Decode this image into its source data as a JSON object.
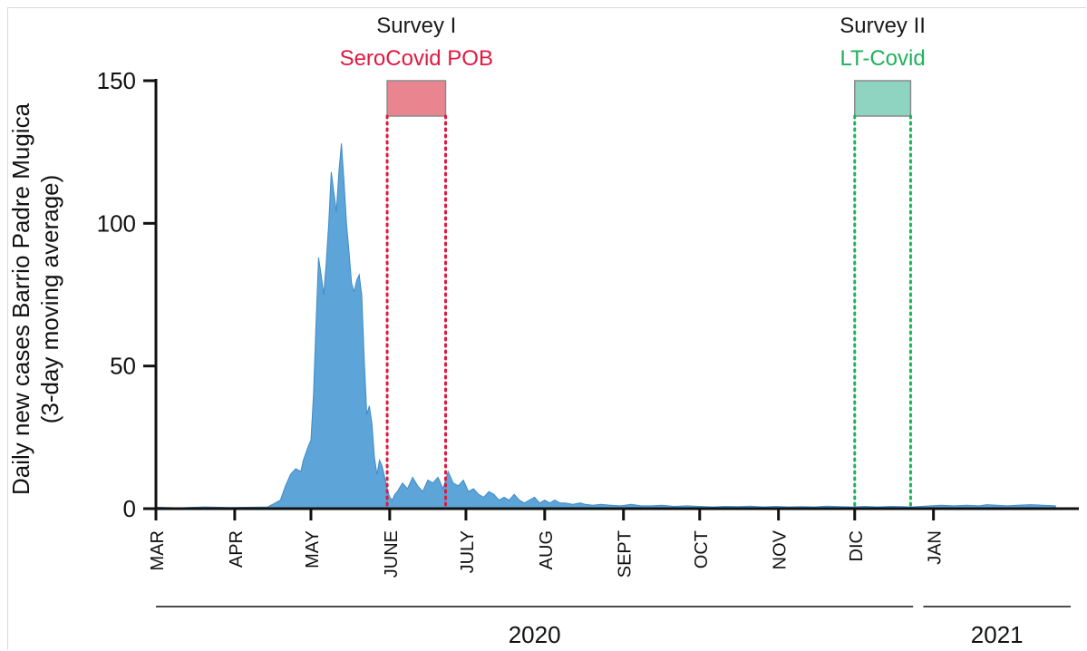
{
  "chart_data": {
    "type": "area",
    "ylabel_line1": "Daily new cases Barrio Padre Mugica",
    "ylabel_line2": "(3-day moving average)",
    "ylim": [
      0,
      150
    ],
    "yticks": [
      0,
      50,
      100,
      150
    ],
    "x_unit": "day of year 2020 (day 1 = Jan 1, 2020)",
    "xlim": [
      61,
      421
    ],
    "month_ticks": [
      {
        "label": "MAR",
        "day": 61
      },
      {
        "label": "APR",
        "day": 92
      },
      {
        "label": "MAY",
        "day": 122
      },
      {
        "label": "JUNE",
        "day": 153
      },
      {
        "label": "JULY",
        "day": 183
      },
      {
        "label": "AUG",
        "day": 214
      },
      {
        "label": "SEPT",
        "day": 245
      },
      {
        "label": "OCT",
        "day": 275
      },
      {
        "label": "NOV",
        "day": 306
      },
      {
        "label": "DIC",
        "day": 336
      },
      {
        "label": "JAN",
        "day": 367
      }
    ],
    "year_groups": [
      {
        "label": "2020",
        "from": 61,
        "to": 359
      },
      {
        "label": "2021",
        "from": 363,
        "to": 421
      }
    ],
    "surveys": [
      {
        "title": "Survey I",
        "name": "SeroCovid POB",
        "start": 152,
        "end": 175,
        "color": "#e0193f",
        "fill": "#e8858f"
      },
      {
        "title": "Survey II",
        "name": "LT-Covid",
        "start": 336,
        "end": 358,
        "color": "#1db15a",
        "fill": "#8fd3c1"
      }
    ],
    "series": [
      {
        "color": "#5da4d8",
        "x": [
          61,
          70,
          80,
          90,
          100,
          105,
          108,
          110,
          112,
          114,
          116,
          118,
          119,
          121,
          122,
          123,
          124,
          125,
          126,
          127,
          128,
          129,
          130,
          131,
          132,
          133,
          134,
          135,
          136,
          137,
          138,
          139,
          140,
          141,
          142,
          143,
          144,
          145,
          146,
          147,
          148,
          149,
          150,
          151,
          152,
          153,
          154,
          155,
          156,
          158,
          160,
          162,
          164,
          166,
          168,
          170,
          172,
          174,
          176,
          178,
          180,
          182,
          184,
          186,
          188,
          190,
          192,
          194,
          196,
          198,
          200,
          202,
          204,
          206,
          208,
          210,
          212,
          214,
          216,
          218,
          220,
          222,
          225,
          228,
          230,
          233,
          236,
          240,
          244,
          248,
          252,
          256,
          260,
          265,
          270,
          275,
          280,
          285,
          290,
          295,
          300,
          305,
          310,
          315,
          320,
          325,
          330,
          335,
          340,
          345,
          350,
          355,
          358,
          362,
          366,
          370,
          375,
          380,
          385,
          388,
          392,
          396,
          400,
          405,
          410,
          415
        ],
        "y": [
          0.5,
          0.3,
          0.6,
          0.4,
          0.5,
          0.6,
          2,
          3,
          8,
          12,
          14,
          13,
          17,
          22,
          24,
          40,
          65,
          88,
          82,
          75,
          86,
          100,
          118,
          111,
          104,
          118,
          128,
          115,
          100,
          90,
          79,
          76,
          80,
          82,
          75,
          52,
          33,
          36,
          30,
          18,
          12,
          17,
          15,
          11,
          7,
          4,
          3,
          5,
          6,
          9,
          7,
          11,
          8,
          6,
          10,
          9,
          11,
          7,
          13,
          9,
          8,
          10,
          6,
          7,
          5,
          4,
          6,
          5,
          3,
          4,
          3,
          5,
          3,
          2,
          3,
          4,
          2,
          3,
          2,
          3,
          2,
          2,
          1.5,
          2,
          1.5,
          1.2,
          1.5,
          1.2,
          1,
          1.5,
          1,
          1,
          1.2,
          0.8,
          1,
          0.8,
          0.6,
          0.8,
          0.7,
          0.9,
          0.6,
          0.8,
          0.6,
          0.7,
          0.6,
          0.9,
          0.7,
          0.6,
          0.8,
          0.6,
          0.8,
          0.7,
          0.6,
          0.8,
          1,
          1.2,
          1,
          1.2,
          1,
          1.4,
          1.2,
          1,
          1.2,
          1.4,
          1.2,
          1
        ]
      }
    ]
  }
}
